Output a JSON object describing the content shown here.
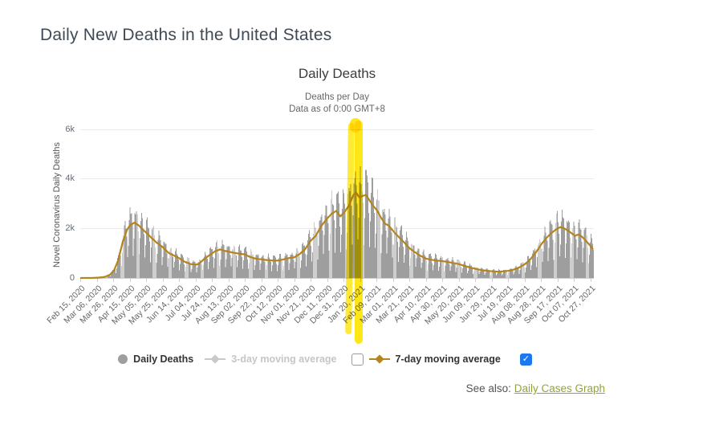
{
  "page": {
    "title": "Daily New Deaths in the United States",
    "see_also_label": "See also:",
    "see_also_link": "Daily Cases Graph"
  },
  "chart": {
    "title": "Daily Deaths",
    "subtitle_line1": "Deaths per Day",
    "subtitle_line2": "Data as of 0:00 GMT+8",
    "y_axis_title": "Novel Coronavirus Daily Deaths"
  },
  "legend": {
    "items": [
      {
        "label": "Daily Deaths",
        "marker": "circle",
        "color": "#9e9e9e",
        "enabled": true
      },
      {
        "label": "3-day moving average",
        "marker": "line-diamond",
        "color": "#c9c9c9",
        "enabled": false,
        "checkbox": "unchecked"
      },
      {
        "label": "7-day moving average",
        "marker": "line-diamond",
        "color": "#b5841c",
        "enabled": true,
        "checkbox": "checked"
      }
    ],
    "checkmark_glyph": "✓",
    "checkbox_checked_color": "#1a78f0"
  },
  "annotation": {
    "type": "highlighter-strokes",
    "color": "#ffe60a",
    "highlighted_region": "January 2021 peak (approx Jan 08 - Jan 22, 2021)"
  },
  "chart_data": {
    "type": "combo (bar + line)",
    "title": "Daily Deaths",
    "xlabel": "",
    "ylabel": "Novel Coronavirus Daily Deaths",
    "start_date": "2020-02-15",
    "end_date": "2021-10-30",
    "ylim": [
      0,
      6000
    ],
    "y_ticks": [
      "0",
      "2k",
      "4k",
      "6k"
    ],
    "y_tick_values": [
      0,
      2000,
      4000,
      6000
    ],
    "grid": "horizontal only",
    "legend_position": "bottom center",
    "x_tick_interval_days": 20,
    "x_tick_labels": [
      "Feb 15, 2020",
      "Mar 06, 2020",
      "Mar 26, 2020",
      "Apr 15, 2020",
      "May 05, 2020",
      "May 25, 2020",
      "Jun 14, 2020",
      "Jul 04, 2020",
      "Jul 24, 2020",
      "Aug 13, 2020",
      "Sep 02, 2020",
      "Sep 22, 2020",
      "Oct 12, 2020",
      "Nov 01, 2020",
      "Nov 21, 2020",
      "Dec 11, 2020",
      "Dec 31, 2020",
      "Jan 20, 2021",
      "Feb 09, 2021",
      "Mar 01, 2021",
      "Mar 21, 2021",
      "Apr 10, 2021",
      "Apr 30, 2021",
      "May 20, 2021",
      "Jun 09, 2021",
      "Jun 29, 2021",
      "Jul 19, 2021",
      "Aug 08, 2021",
      "Aug 28, 2021",
      "Sep 17, 2021",
      "Oct 07, 2021",
      "Oct 27, 2021"
    ],
    "series": [
      {
        "name": "Daily Deaths",
        "type": "column",
        "color": "#9e9e9e",
        "visible": true,
        "note": "daily bars oscillate weekly (weekend reporting dips) around the 7-day moving average",
        "weekly_pattern_sun_to_sat": [
          0.42,
          0.72,
          1.18,
          1.3,
          1.24,
          1.14,
          0.9
        ]
      },
      {
        "name": "3-day moving average",
        "type": "line",
        "color": "#c9c9c9",
        "visible": false
      },
      {
        "name": "7-day moving average",
        "type": "line",
        "color": "#b5841c",
        "visible": true,
        "anchors_date_value": [
          [
            "2020-02-15",
            0
          ],
          [
            "2020-02-29",
            2
          ],
          [
            "2020-03-08",
            15
          ],
          [
            "2020-03-16",
            45
          ],
          [
            "2020-03-22",
            130
          ],
          [
            "2020-03-27",
            300
          ],
          [
            "2020-04-01",
            700
          ],
          [
            "2020-04-07",
            1500
          ],
          [
            "2020-04-12",
            1950
          ],
          [
            "2020-04-16",
            2150
          ],
          [
            "2020-04-21",
            2230
          ],
          [
            "2020-04-26",
            2120
          ],
          [
            "2020-05-01",
            1950
          ],
          [
            "2020-05-06",
            1800
          ],
          [
            "2020-05-12",
            1600
          ],
          [
            "2020-05-18",
            1420
          ],
          [
            "2020-05-25",
            1250
          ],
          [
            "2020-06-01",
            1020
          ],
          [
            "2020-06-08",
            900
          ],
          [
            "2020-06-14",
            800
          ],
          [
            "2020-06-21",
            650
          ],
          [
            "2020-06-28",
            560
          ],
          [
            "2020-07-04",
            540
          ],
          [
            "2020-07-08",
            560
          ],
          [
            "2020-07-14",
            750
          ],
          [
            "2020-07-21",
            920
          ],
          [
            "2020-07-28",
            1080
          ],
          [
            "2020-08-03",
            1150
          ],
          [
            "2020-08-08",
            1100
          ],
          [
            "2020-08-13",
            1060
          ],
          [
            "2020-08-19",
            1020
          ],
          [
            "2020-08-26",
            980
          ],
          [
            "2020-09-02",
            950
          ],
          [
            "2020-09-08",
            850
          ],
          [
            "2020-09-15",
            780
          ],
          [
            "2020-09-22",
            750
          ],
          [
            "2020-09-29",
            720
          ],
          [
            "2020-10-06",
            700
          ],
          [
            "2020-10-12",
            700
          ],
          [
            "2020-10-18",
            740
          ],
          [
            "2020-10-25",
            800
          ],
          [
            "2020-11-01",
            830
          ],
          [
            "2020-11-07",
            950
          ],
          [
            "2020-11-14",
            1150
          ],
          [
            "2020-11-21",
            1500
          ],
          [
            "2020-11-27",
            1700
          ],
          [
            "2020-12-04",
            2100
          ],
          [
            "2020-12-11",
            2400
          ],
          [
            "2020-12-17",
            2600
          ],
          [
            "2020-12-22",
            2700
          ],
          [
            "2020-12-27",
            2480
          ],
          [
            "2021-01-01",
            2650
          ],
          [
            "2021-01-06",
            2900
          ],
          [
            "2021-01-12",
            3350
          ],
          [
            "2021-01-15",
            3450
          ],
          [
            "2021-01-19",
            3250
          ],
          [
            "2021-01-23",
            3300
          ],
          [
            "2021-01-27",
            3350
          ],
          [
            "2021-02-01",
            3100
          ],
          [
            "2021-02-05",
            2900
          ],
          [
            "2021-02-09",
            2750
          ],
          [
            "2021-02-14",
            2450
          ],
          [
            "2021-02-19",
            2200
          ],
          [
            "2021-02-24",
            2100
          ],
          [
            "2021-03-01",
            1900
          ],
          [
            "2021-03-08",
            1650
          ],
          [
            "2021-03-14",
            1450
          ],
          [
            "2021-03-21",
            1200
          ],
          [
            "2021-03-27",
            1050
          ],
          [
            "2021-04-03",
            900
          ],
          [
            "2021-04-10",
            780
          ],
          [
            "2021-04-17",
            730
          ],
          [
            "2021-04-24",
            700
          ],
          [
            "2021-04-30",
            680
          ],
          [
            "2021-05-07",
            640
          ],
          [
            "2021-05-14",
            600
          ],
          [
            "2021-05-20",
            560
          ],
          [
            "2021-05-27",
            480
          ],
          [
            "2021-06-03",
            420
          ],
          [
            "2021-06-09",
            370
          ],
          [
            "2021-06-16",
            320
          ],
          [
            "2021-06-23",
            290
          ],
          [
            "2021-06-29",
            270
          ],
          [
            "2021-07-06",
            255
          ],
          [
            "2021-07-13",
            265
          ],
          [
            "2021-07-19",
            290
          ],
          [
            "2021-07-26",
            340
          ],
          [
            "2021-08-01",
            420
          ],
          [
            "2021-08-08",
            550
          ],
          [
            "2021-08-14",
            720
          ],
          [
            "2021-08-21",
            1000
          ],
          [
            "2021-08-28",
            1350
          ],
          [
            "2021-09-03",
            1600
          ],
          [
            "2021-09-09",
            1800
          ],
          [
            "2021-09-15",
            1950
          ],
          [
            "2021-09-20",
            2050
          ],
          [
            "2021-09-25",
            2000
          ],
          [
            "2021-09-30",
            1900
          ],
          [
            "2021-10-04",
            1800
          ],
          [
            "2021-10-08",
            1700
          ],
          [
            "2021-10-12",
            1750
          ],
          [
            "2021-10-16",
            1680
          ],
          [
            "2021-10-20",
            1550
          ],
          [
            "2021-10-24",
            1400
          ],
          [
            "2021-10-28",
            1250
          ],
          [
            "2021-10-30",
            1150
          ]
        ]
      }
    ]
  }
}
